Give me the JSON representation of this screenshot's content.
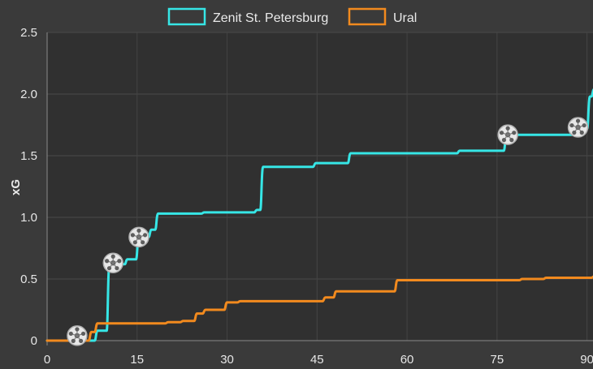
{
  "chart_data": {
    "type": "line",
    "title": "",
    "xlabel": "",
    "ylabel": "xG",
    "xlim": [
      0,
      91
    ],
    "ylim": [
      0,
      2.5
    ],
    "xticks": [
      "0",
      "15",
      "30",
      "45",
      "60",
      "75",
      "90"
    ],
    "yticks": [
      "0",
      "0.5",
      "1.0",
      "1.5",
      "2.0",
      "2.5"
    ],
    "grid": true,
    "legend_position": "top-center",
    "series": [
      {
        "name": "Zenit St. Petersburg",
        "color": "#36e6e6",
        "step_points": [
          [
            0,
            0
          ],
          [
            8.2,
            0.08
          ],
          [
            10.2,
            0.62
          ],
          [
            13.2,
            0.66
          ],
          [
            15.1,
            0.84
          ],
          [
            17.2,
            0.9
          ],
          [
            18.3,
            1.03
          ],
          [
            26,
            1.04
          ],
          [
            34.8,
            1.06
          ],
          [
            35.8,
            1.41
          ],
          [
            44.6,
            1.44
          ],
          [
            50.4,
            1.52
          ],
          [
            68.6,
            1.54
          ],
          [
            76.4,
            1.67
          ],
          [
            89.6,
            1.72
          ],
          [
            90.3,
            1.98
          ],
          [
            91,
            2.04
          ]
        ],
        "goals": [
          {
            "minute": 5,
            "xg": 0.04
          },
          {
            "minute": 11,
            "xg": 0.63
          },
          {
            "minute": 15.3,
            "xg": 0.84
          },
          {
            "minute": 76.8,
            "xg": 1.67
          },
          {
            "minute": 88.5,
            "xg": 1.73
          }
        ]
      },
      {
        "name": "Ural",
        "color": "#f28a1e",
        "step_points": [
          [
            0,
            0
          ],
          [
            7.2,
            0.07
          ],
          [
            8.2,
            0.14
          ],
          [
            20,
            0.15
          ],
          [
            22.5,
            0.16
          ],
          [
            24.8,
            0.22
          ],
          [
            26.2,
            0.25
          ],
          [
            29.8,
            0.31
          ],
          [
            32,
            0.32
          ],
          [
            46.2,
            0.35
          ],
          [
            48,
            0.4
          ],
          [
            58.2,
            0.49
          ],
          [
            79,
            0.5
          ],
          [
            83,
            0.51
          ],
          [
            91,
            0.52
          ]
        ],
        "goals": []
      }
    ]
  }
}
